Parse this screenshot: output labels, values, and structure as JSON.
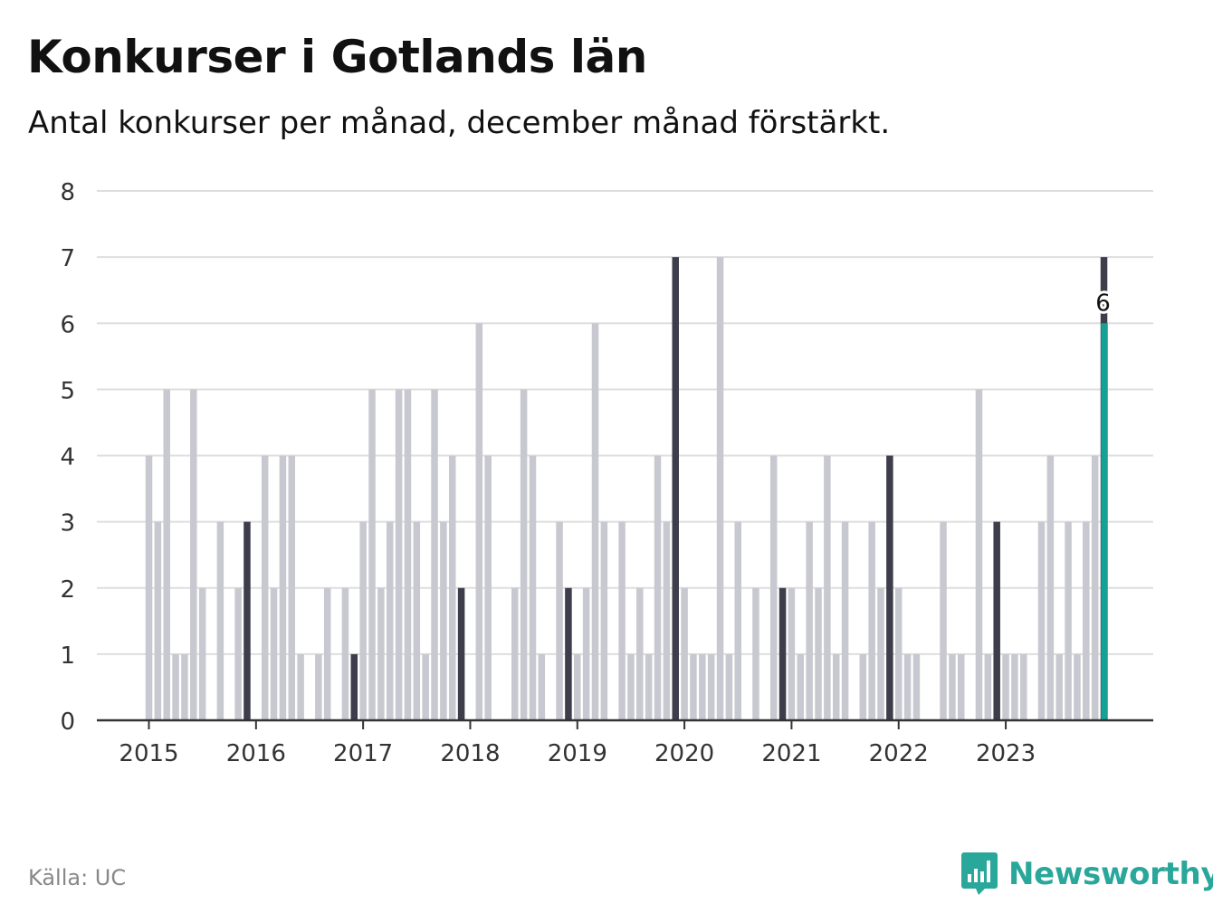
{
  "title": "Konkurser i Gotlands län",
  "subtitle": "Antal konkurser per månad, december månad förstärkt.",
  "source": "Källa: UC",
  "brand": {
    "name": "Newsworthy",
    "logo_icon": "newsworthy-bar-chart-logo-icon"
  },
  "colors": {
    "bar": "#c8c8d0",
    "december": "#3d3d4b",
    "highlight": "#15a194",
    "grid": "#dedede",
    "axis": "#333333"
  },
  "chart_data": {
    "type": "bar",
    "title": "Konkurser i Gotlands län",
    "xlabel": "",
    "ylabel": "",
    "ylim": [
      0,
      8
    ],
    "yticks": [
      "0",
      "1",
      "2",
      "3",
      "4",
      "5",
      "6",
      "7",
      "8"
    ],
    "xticks": [
      "2015",
      "2016",
      "2017",
      "2018",
      "2019",
      "2020",
      "2021",
      "2022",
      "2023"
    ],
    "start": "2015-01",
    "end": "2023-12",
    "values": [
      4,
      3,
      5,
      1,
      1,
      5,
      2,
      0,
      3,
      0,
      2,
      3,
      0,
      4,
      2,
      4,
      4,
      1,
      0,
      1,
      2,
      0,
      2,
      1,
      3,
      5,
      2,
      3,
      5,
      5,
      3,
      1,
      5,
      3,
      4,
      2,
      0,
      6,
      4,
      0,
      0,
      2,
      5,
      4,
      1,
      0,
      3,
      2,
      1,
      2,
      6,
      3,
      0,
      3,
      1,
      2,
      1,
      4,
      3,
      7,
      2,
      1,
      1,
      1,
      7,
      1,
      3,
      0,
      2,
      0,
      4,
      2,
      2,
      1,
      3,
      2,
      4,
      1,
      3,
      0,
      1,
      3,
      2,
      4,
      2,
      1,
      1,
      0,
      0,
      3,
      1,
      1,
      0,
      5,
      1,
      3,
      1,
      1,
      1,
      0,
      3,
      4,
      1,
      3,
      1,
      3,
      4,
      7
    ],
    "highlight": {
      "label": "6",
      "value": 6
    },
    "december_emphasis": true
  }
}
